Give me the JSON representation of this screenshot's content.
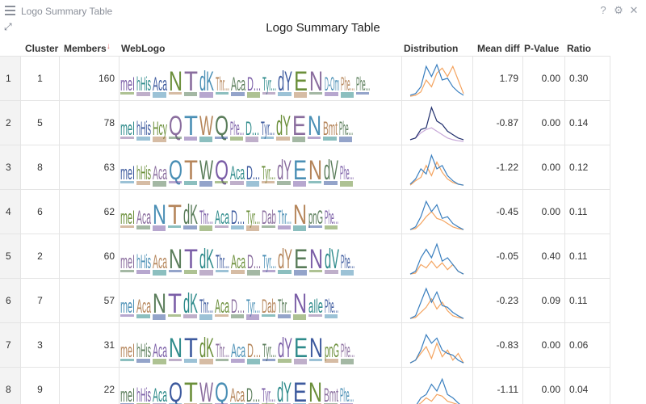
{
  "window": {
    "title": "Logo Summary Table",
    "icons": [
      "menu-icon",
      "help-icon",
      "settings-icon",
      "close-icon",
      "expand-icon"
    ]
  },
  "table": {
    "title": "Logo Summary Table",
    "columns": {
      "cluster": "Cluster",
      "members": "Members",
      "weblogo": "WebLogo",
      "distribution": "Distribution",
      "mean_diff": "Mean diff",
      "p_value": "P-Value",
      "ratio": "Ratio"
    },
    "sorted_by": "members",
    "sort_indicator": "↓",
    "rows": [
      {
        "index": "1",
        "cluster": "1",
        "members": "160",
        "mean_diff": "1.79",
        "p_value": "0.00",
        "ratio": "0.30",
        "logo": [
          "meI",
          "hHis",
          "Aca",
          "N",
          "T",
          "dK",
          "Thr...",
          "Aca",
          "D...",
          "Tyr...",
          "dY",
          "E",
          "N",
          "D-Om",
          "Phe...",
          "Phe..."
        ]
      },
      {
        "index": "2",
        "cluster": "5",
        "members": "78",
        "mean_diff": "-0.87",
        "p_value": "0.00",
        "ratio": "0.14",
        "logo": [
          "meI",
          "hHis",
          "Hcy",
          "Q",
          "T",
          "W",
          "Q",
          "Phe...",
          "D...",
          "Tyr...",
          "dY",
          "E",
          "N",
          "Bmt",
          "Phe..."
        ]
      },
      {
        "index": "3",
        "cluster": "8",
        "members": "63",
        "mean_diff": "-1.22",
        "p_value": "0.00",
        "ratio": "0.12",
        "logo": [
          "meI",
          "hHis",
          "Aca",
          "Q",
          "T",
          "W",
          "Q",
          "Aca",
          "D...",
          "Tyr...",
          "dY",
          "E",
          "N",
          "dV",
          "Phe..."
        ]
      },
      {
        "index": "4",
        "cluster": "6",
        "members": "62",
        "mean_diff": "-0.45",
        "p_value": "0.00",
        "ratio": "0.11",
        "logo": [
          "meI",
          "Aca",
          "N",
          "T",
          "dK",
          "Thr...",
          "Aca",
          "D...",
          "Tyr...",
          "Dab",
          "Thr...",
          "N",
          "pnG",
          "Phe..."
        ]
      },
      {
        "index": "5",
        "cluster": "2",
        "members": "60",
        "mean_diff": "-0.05",
        "p_value": "0.40",
        "ratio": "0.11",
        "logo": [
          "meI",
          "hHis",
          "Aca",
          "N",
          "T",
          "dK",
          "Thr...",
          "Aca",
          "D...",
          "Tyr...",
          "dY",
          "E",
          "N",
          "dV",
          "Phe..."
        ]
      },
      {
        "index": "6",
        "cluster": "7",
        "members": "57",
        "mean_diff": "-0.23",
        "p_value": "0.09",
        "ratio": "0.11",
        "logo": [
          "meI",
          "Aca",
          "N",
          "T",
          "dK",
          "Thr...",
          "Aca",
          "D...",
          "Tyr...",
          "Dab",
          "Thr...",
          "N",
          "aIle",
          "Phe..."
        ]
      },
      {
        "index": "7",
        "cluster": "3",
        "members": "31",
        "mean_diff": "-0.83",
        "p_value": "0.00",
        "ratio": "0.06",
        "logo": [
          "meI",
          "hHis",
          "Aca",
          "N",
          "T",
          "dK",
          "Thr...",
          "Aca",
          "D...",
          "Tyr...",
          "dY",
          "E",
          "N",
          "pnG",
          "Phe..."
        ]
      },
      {
        "index": "8",
        "cluster": "9",
        "members": "22",
        "mean_diff": "-1.11",
        "p_value": "0.00",
        "ratio": "0.04",
        "logo": [
          "meI",
          "hHis",
          "Aca",
          "Q",
          "T",
          "W",
          "Q",
          "Aca",
          "D...",
          "Tyr...",
          "dY",
          "E",
          "N",
          "Bmt",
          "Phe..."
        ]
      }
    ]
  },
  "colors": {
    "logo_palette": [
      "#7b5ea7",
      "#2e8b8b",
      "#3d5a9e",
      "#6b8f3a",
      "#8a6d9e",
      "#4a8fb5",
      "#b5855a",
      "#5a7d5a"
    ],
    "dist_primary": "#3a7fbf",
    "dist_secondary": "#f4a460",
    "dist_dark": "#1f2d6b",
    "dist_light": "#c7a8d8"
  },
  "distributions": [
    {
      "a": [
        0.05,
        0.1,
        0.3,
        0.9,
        0.6,
        0.95,
        0.5,
        0.55,
        0.3,
        0.15,
        0.05
      ],
      "b": [
        0.02,
        0.05,
        0.15,
        0.5,
        0.3,
        0.7,
        0.85,
        0.6,
        0.9,
        0.5,
        0.1
      ]
    },
    {
      "a": [
        0.05,
        0.1,
        0.35,
        0.4,
        1.0,
        0.6,
        0.5,
        0.3,
        0.2,
        0.1,
        0.05
      ],
      "b": [
        0.05,
        0.1,
        0.25,
        0.35,
        0.4,
        0.3,
        0.2,
        0.1,
        0.05,
        0.02,
        0.0
      ]
    },
    {
      "a": [
        0.05,
        0.2,
        0.5,
        0.35,
        0.9,
        0.5,
        0.6,
        0.3,
        0.15,
        0.05,
        0.02
      ],
      "b": [
        0.02,
        0.15,
        0.25,
        0.6,
        0.3,
        0.7,
        0.4,
        0.2,
        0.1,
        0.05,
        0.02
      ]
    },
    {
      "a": [
        0.02,
        0.1,
        0.4,
        0.85,
        0.55,
        0.75,
        0.35,
        0.4,
        0.2,
        0.1,
        0.02
      ],
      "b": [
        0.02,
        0.05,
        0.2,
        0.4,
        0.55,
        0.35,
        0.3,
        0.2,
        0.1,
        0.05,
        0.02
      ]
    },
    {
      "a": [
        0.02,
        0.1,
        0.5,
        0.75,
        0.5,
        0.9,
        0.4,
        0.5,
        0.3,
        0.1,
        0.02
      ],
      "b": [
        0.02,
        0.05,
        0.3,
        0.2,
        0.4,
        0.2,
        0.35,
        0.15,
        0.3,
        0.1,
        0.02
      ]
    },
    {
      "a": [
        0.02,
        0.1,
        0.5,
        0.9,
        0.5,
        0.8,
        0.4,
        0.35,
        0.2,
        0.1,
        0.02
      ],
      "b": [
        0.02,
        0.05,
        0.2,
        0.35,
        0.6,
        0.3,
        0.5,
        0.25,
        0.1,
        0.05,
        0.02
      ]
    },
    {
      "a": [
        0.02,
        0.1,
        0.4,
        0.85,
        0.6,
        0.75,
        0.4,
        0.3,
        0.25,
        0.1,
        0.02
      ],
      "b": [
        0.02,
        0.1,
        0.3,
        0.5,
        0.15,
        0.6,
        0.2,
        0.4,
        0.1,
        0.3,
        0.02
      ]
    },
    {
      "a": [
        0.02,
        0.05,
        0.3,
        0.4,
        0.7,
        0.5,
        0.85,
        0.4,
        0.3,
        0.15,
        0.02
      ],
      "b": [
        0.02,
        0.05,
        0.15,
        0.3,
        0.2,
        0.4,
        0.35,
        0.2,
        0.15,
        0.1,
        0.02
      ]
    }
  ]
}
